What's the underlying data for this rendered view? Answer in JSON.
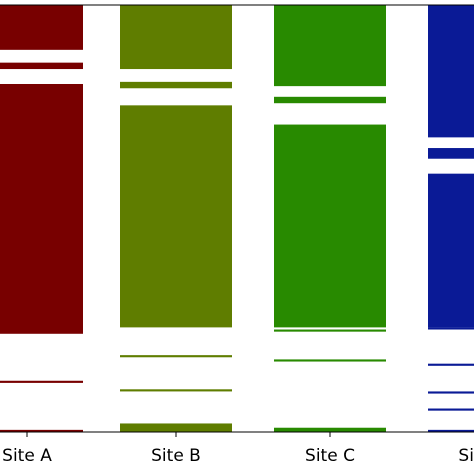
{
  "chart_data": {
    "type": "bar",
    "categories": [
      "Site A",
      "Site B",
      "Site C",
      "Site D"
    ],
    "ylim": [
      0,
      100
    ],
    "grid": false,
    "series": [
      {
        "category": "Site A",
        "color": "#780000",
        "segments": [
          [
            0,
            0.5
          ],
          [
            11.5,
            12.0
          ],
          [
            23.0,
            81.5
          ],
          [
            85.0,
            86.5
          ],
          [
            89.5,
            100
          ]
        ]
      },
      {
        "category": "Site B",
        "color": "#5f7d00",
        "segments": [
          [
            0,
            2.0
          ],
          [
            9.5,
            10.0
          ],
          [
            17.5,
            18.0
          ],
          [
            24.5,
            76.5
          ],
          [
            80.5,
            82.0
          ],
          [
            85.0,
            100
          ]
        ]
      },
      {
        "category": "Site C",
        "color": "#288a00",
        "segments": [
          [
            0,
            1.0
          ],
          [
            16.5,
            17.0
          ],
          [
            23.5,
            24.0
          ],
          [
            24.5,
            72.0
          ],
          [
            77.0,
            78.5
          ],
          [
            81.0,
            100
          ]
        ]
      },
      {
        "category": "Site D",
        "color": "#0a1a96",
        "segments": [
          [
            0,
            0.5
          ],
          [
            5.0,
            5.5
          ],
          [
            9.0,
            9.5
          ],
          [
            15.5,
            16.0
          ],
          [
            24.0,
            24.5
          ],
          [
            24.5,
            60.5
          ],
          [
            64.0,
            66.5
          ],
          [
            69.0,
            100
          ]
        ]
      }
    ]
  }
}
